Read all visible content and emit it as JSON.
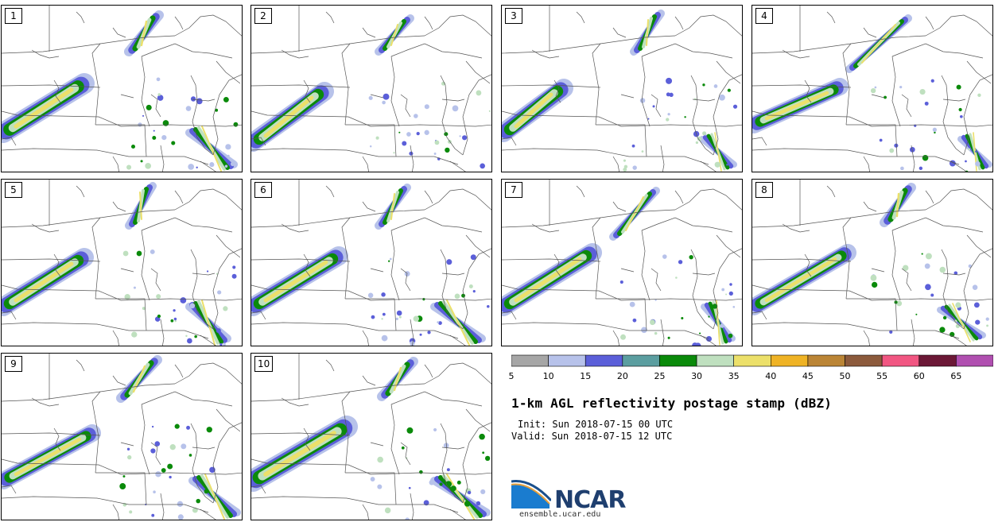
{
  "panels": [
    {
      "label": "1"
    },
    {
      "label": "2"
    },
    {
      "label": "3"
    },
    {
      "label": "4"
    },
    {
      "label": "5"
    },
    {
      "label": "6"
    },
    {
      "label": "7"
    },
    {
      "label": "8"
    },
    {
      "label": "9"
    },
    {
      "label": "10"
    }
  ],
  "legend": {
    "colors": [
      "#a6a6a6",
      "#b7c2ea",
      "#5b5fd9",
      "#5b9ea0",
      "#0a8a0a",
      "#bfe0bf",
      "#ece06a",
      "#efb325",
      "#bb8536",
      "#8c5a3c",
      "#f15682",
      "#6b1836",
      "#b04fb0"
    ],
    "labels": [
      "5",
      "10",
      "15",
      "20",
      "25",
      "30",
      "35",
      "40",
      "45",
      "50",
      "55",
      "60",
      "65"
    ]
  },
  "title": "1-km AGL reflectivity postage stamp (dBZ)",
  "init": "Init: Sun 2018-07-15 00 UTC",
  "valid": "Valid: Sun 2018-07-15 12 UTC",
  "logo": {
    "text": "NCAR",
    "site": "ensemble.ucar.edu"
  }
}
